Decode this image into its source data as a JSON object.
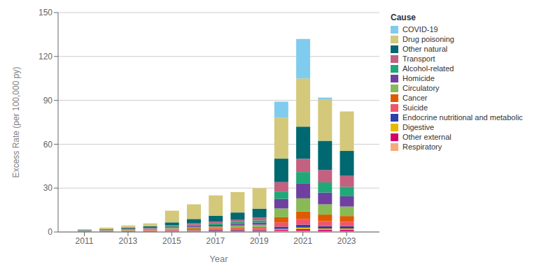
{
  "chart_data": {
    "type": "bar",
    "stacked": true,
    "xlabel": "Year",
    "ylabel": "Excess Rate (per 100,000 py)",
    "legend_title": "Cause",
    "legend": "right",
    "grid": true,
    "x": [
      2011,
      2012,
      2013,
      2014,
      2015,
      2016,
      2017,
      2018,
      2019,
      2020,
      2021,
      2022,
      2023
    ],
    "xlim": [
      2009.8,
      2024.5
    ],
    "xticks": [
      2011,
      2013,
      2015,
      2017,
      2019,
      2021,
      2023
    ],
    "ylim": [
      0,
      150
    ],
    "yticks": [
      0,
      30,
      60,
      90,
      120,
      150
    ],
    "series": [
      {
        "name": "Respiratory",
        "color": "#f7a97a",
        "values": [
          0.15,
          0.2,
          0.25,
          0.3,
          0.4,
          0.4,
          0.5,
          0.5,
          0.5,
          0.8,
          0.8,
          0.6,
          0.6
        ]
      },
      {
        "name": "Other external",
        "color": "#d6006a",
        "values": [
          0.1,
          0.15,
          0.2,
          0.2,
          0.3,
          0.3,
          0.4,
          0.4,
          0.4,
          0.8,
          1.2,
          1.0,
          1.0
        ]
      },
      {
        "name": "Digestive",
        "color": "#e8b800",
        "values": [
          0.05,
          0.05,
          0.1,
          0.1,
          0.15,
          0.2,
          0.2,
          0.2,
          0.25,
          0.5,
          1.0,
          0.8,
          0.8
        ]
      },
      {
        "name": "Endocrine nutritional and metabolic",
        "color": "#2c3faa",
        "values": [
          0.05,
          0.1,
          0.1,
          0.15,
          0.2,
          0.3,
          0.3,
          0.4,
          0.5,
          1.5,
          2.0,
          1.5,
          1.5
        ]
      },
      {
        "name": "Suicide",
        "color": "#f0566a",
        "values": [
          0.15,
          0.2,
          0.3,
          0.4,
          0.6,
          0.7,
          0.8,
          1.0,
          1.0,
          3.0,
          4.0,
          3.5,
          3.0
        ]
      },
      {
        "name": "Cancer",
        "color": "#e05a00",
        "values": [
          0.1,
          0.15,
          0.2,
          0.25,
          0.4,
          0.5,
          0.6,
          0.7,
          0.8,
          3.5,
          5.0,
          4.5,
          4.0
        ]
      },
      {
        "name": "Circulatory",
        "color": "#88bb55",
        "values": [
          0.15,
          0.2,
          0.3,
          0.4,
          0.6,
          0.8,
          1.0,
          1.2,
          1.5,
          6.0,
          9.0,
          7.0,
          6.5
        ]
      },
      {
        "name": "Homicide",
        "color": "#7040a0",
        "values": [
          0.15,
          0.2,
          0.3,
          0.4,
          0.6,
          0.9,
          1.0,
          1.2,
          1.5,
          6.5,
          10.0,
          8.0,
          7.0
        ]
      },
      {
        "name": "Alcohol-related",
        "color": "#20a878",
        "values": [
          0.1,
          0.15,
          0.2,
          0.3,
          0.6,
          0.8,
          1.0,
          1.2,
          1.5,
          5.0,
          8.0,
          7.0,
          6.5
        ]
      },
      {
        "name": "Transport",
        "color": "#c46080",
        "values": [
          0.1,
          0.2,
          0.3,
          0.4,
          0.7,
          1.0,
          1.2,
          1.5,
          2.0,
          6.5,
          9.0,
          8.5,
          7.5
        ]
      },
      {
        "name": "Other natural",
        "color": "#006870",
        "values": [
          0.25,
          0.4,
          0.7,
          1.0,
          2.0,
          3.0,
          4.0,
          5.0,
          6.0,
          16.0,
          22.0,
          20.0,
          17.0
        ]
      },
      {
        "name": "Drug poisoning",
        "color": "#d4c87a",
        "values": [
          0.6,
          1.0,
          1.5,
          2.0,
          8.0,
          10.0,
          14.0,
          14.0,
          14.0,
          28.0,
          33.0,
          28.0,
          27.0
        ]
      },
      {
        "name": "COVID-19",
        "color": "#80ccee",
        "values": [
          0.0,
          0.0,
          0.0,
          0.0,
          0.0,
          0.0,
          0.0,
          0.0,
          0.0,
          11.0,
          27.0,
          1.5,
          0.0
        ]
      }
    ]
  }
}
